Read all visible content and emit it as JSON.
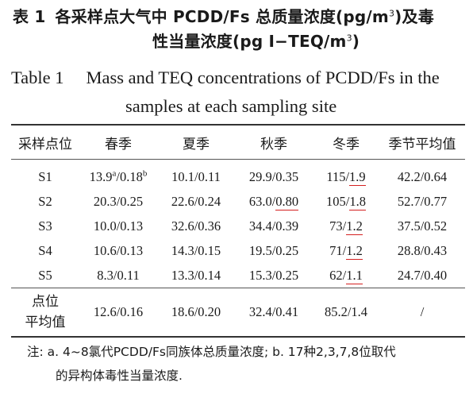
{
  "title_cn": {
    "number": "表 1",
    "line1_prefix": "各采样点大气中 PCDD/Fs 总质量浓度(pg/m",
    "line1_sup": "3",
    "line1_suffix": ")及毒",
    "line2_prefix": "性当量浓度(pg I−TEQ/m",
    "line2_sup": "3",
    "line2_suffix": ")"
  },
  "title_en": {
    "number": "Table 1",
    "line1": "Mass and TEQ concentrations of PCDD/Fs in the",
    "line2": "samples at each sampling site"
  },
  "table": {
    "headers": [
      "采样点位",
      "春季",
      "夏季",
      "秋季",
      "冬季",
      "季节平均值"
    ],
    "rows": [
      {
        "site": "S1",
        "spring_mass": "13.9",
        "spring_mass_sup": "a",
        "spring_sep": "/",
        "spring_teq": "0.18",
        "spring_teq_sup": "b",
        "summer": "10.1/0.11",
        "autumn_mass": "29.9/",
        "autumn_teq": "0.35",
        "winter_mass": "115/",
        "winter_teq": "1.9",
        "seasonal_avg": "42.2/0.64"
      },
      {
        "site": "S2",
        "spring": "20.3/0.25",
        "summer": "22.6/0.24",
        "autumn_mass": "63.0/",
        "autumn_teq": "0.80",
        "winter_mass": "105/",
        "winter_teq": "1.8",
        "seasonal_avg": "52.7/0.77"
      },
      {
        "site": "S3",
        "spring": "10.0/0.13",
        "summer": "32.6/0.36",
        "autumn_mass": "34.4/",
        "autumn_teq": "0.39",
        "winter_mass": "73/",
        "winter_teq": "1.2",
        "seasonal_avg": "37.5/0.52"
      },
      {
        "site": "S4",
        "spring": "10.6/0.13",
        "summer": "14.3/0.15",
        "autumn_mass": "19.5/",
        "autumn_teq": "0.25",
        "winter_mass": "71/",
        "winter_teq": "1.2",
        "seasonal_avg": "28.8/0.43"
      },
      {
        "site": "S5",
        "spring": "8.3/0.11",
        "summer": "13.3/0.14",
        "autumn_mass": "15.3/",
        "autumn_teq": "0.25",
        "winter_mass": "62/",
        "winter_teq": "1.1",
        "seasonal_avg": "24.7/0.40"
      }
    ],
    "site_average": {
      "label_line1": "点位",
      "label_line2": "平均值",
      "spring": "12.6/0.16",
      "summer": "18.6/0.20",
      "autumn": "32.4/0.41",
      "winter": "85.2/1.4",
      "seasonal_avg": "/"
    }
  },
  "note": {
    "line1": "注: a. 4~8氯代PCDD/Fs同族体总质量浓度; b. 17种2,3,7,8位取代",
    "line2": "的异构体毒性当量浓度."
  },
  "colors": {
    "underline_highlight": "#d42020",
    "rule": "#333333"
  }
}
